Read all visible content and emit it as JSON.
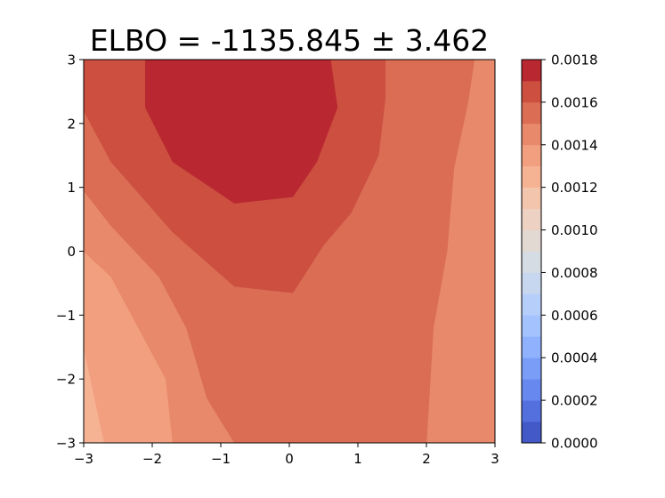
{
  "chart_data": {
    "type": "heatmap",
    "subtype": "filled-contour",
    "title": "ELBO = -1135.845 ± 3.462",
    "xlabel": "",
    "ylabel": "",
    "xlim": [
      -3,
      3
    ],
    "ylim": [
      -3,
      3
    ],
    "x_ticks": [
      -3,
      -2,
      -1,
      0,
      1,
      2,
      3
    ],
    "x_tick_labels": [
      "−3",
      "−2",
      "−1",
      "0",
      "1",
      "2",
      "3"
    ],
    "y_ticks": [
      -3,
      -2,
      -1,
      0,
      1,
      2,
      3
    ],
    "y_tick_labels": [
      "−3",
      "−2",
      "−1",
      "0",
      "1",
      "2",
      "3"
    ],
    "grid": false,
    "colormap": "coolwarm",
    "colorbar": {
      "min": 0.0,
      "max": 0.0018,
      "level_step": 0.0001,
      "ticks": [
        0.0,
        0.0002,
        0.0004,
        0.0006,
        0.0008,
        0.001,
        0.0012,
        0.0014,
        0.0016,
        0.0018
      ],
      "tick_labels": [
        "0.0000",
        "0.0002",
        "0.0004",
        "0.0006",
        "0.0008",
        "0.0010",
        "0.0012",
        "0.0014",
        "0.0016",
        "0.0018"
      ],
      "colors": [
        "#4259c7",
        "#5470de",
        "#6788ee",
        "#7a9df8",
        "#8fb1fe",
        "#a3c2fe",
        "#b6cefa",
        "#c7d7f0",
        "#d6dce4",
        "#e3d9d3",
        "#edd1c2",
        "#f4c5ad",
        "#f6b394",
        "#f29f80",
        "#e7896a",
        "#da6d54",
        "#cc4f40",
        "#b92831"
      ]
    },
    "regions": [
      {
        "level": [
          0.0012,
          0.0013
        ],
        "polygon": [
          [
            -3,
            -3
          ],
          [
            -3,
            -1.5
          ],
          [
            -2.9,
            -2
          ],
          [
            -2.7,
            -3
          ]
        ]
      },
      {
        "level": [
          0.0013,
          0.0014
        ],
        "polygon": [
          [
            -3,
            -3
          ],
          [
            -3,
            0
          ],
          [
            -2.6,
            -0.4
          ],
          [
            -2.2,
            -1.2
          ],
          [
            -1.8,
            -2
          ],
          [
            -1.7,
            -3
          ],
          [
            -2.7,
            -3
          ],
          [
            -2.9,
            -2
          ],
          [
            -3,
            -1.5
          ]
        ]
      },
      {
        "level": [
          0.0014,
          0.0015
        ],
        "polygon": [
          [
            -3,
            0.95
          ],
          [
            -3,
            0
          ],
          [
            -2.6,
            -0.4
          ],
          [
            -2.2,
            -1.2
          ],
          [
            -1.8,
            -2
          ],
          [
            -1.7,
            -3
          ],
          [
            -0.8,
            -3
          ],
          [
            -1.2,
            -2.3
          ],
          [
            -1.5,
            -1.2
          ],
          [
            -1.9,
            -0.4
          ],
          [
            -2.6,
            0.4
          ]
        ]
      },
      {
        "level": [
          0.0014,
          0.0015
        ],
        "polygon": [
          [
            3,
            3
          ],
          [
            2.7,
            3
          ],
          [
            2.6,
            2.3
          ],
          [
            2.4,
            1.3
          ],
          [
            2.3,
            0
          ],
          [
            2.1,
            -1.2
          ],
          [
            2,
            -3
          ],
          [
            3,
            -3
          ]
        ]
      },
      {
        "level": [
          0.0015,
          0.0016
        ],
        "polygon": [
          [
            -3,
            0.95
          ],
          [
            -3,
            2.2
          ],
          [
            -2.6,
            1.4
          ],
          [
            -1.7,
            0.3
          ],
          [
            -0.8,
            -0.55
          ],
          [
            0.05,
            -0.65
          ],
          [
            0.5,
            0.1
          ],
          [
            0.9,
            0.6
          ],
          [
            1.3,
            1.5
          ],
          [
            1.4,
            2.4
          ],
          [
            1.4,
            3
          ],
          [
            2.05,
            3
          ],
          [
            2,
            2.3
          ],
          [
            1.8,
            1.3
          ],
          [
            1.4,
            -0.1
          ],
          [
            1.1,
            -1.2
          ],
          [
            1.0,
            -2.2
          ],
          [
            0.6,
            -3
          ],
          [
            -0.8,
            -3
          ],
          [
            -1.2,
            -2.3
          ],
          [
            -1.5,
            -1.2
          ],
          [
            -1.9,
            -0.4
          ],
          [
            -2.6,
            0.4
          ]
        ]
      },
      {
        "level": [
          0.0015,
          0.0016
        ],
        "polygon": [
          [
            2.05,
            3
          ],
          [
            2.7,
            3
          ],
          [
            2.6,
            2.3
          ],
          [
            2.4,
            1.3
          ],
          [
            2.3,
            0
          ],
          [
            2.1,
            -1.2
          ],
          [
            2,
            -3
          ],
          [
            0.6,
            -3
          ],
          [
            1.0,
            -2.2
          ],
          [
            1.1,
            -1.2
          ],
          [
            1.4,
            -0.1
          ],
          [
            1.8,
            1.3
          ],
          [
            2,
            2.3
          ]
        ]
      },
      {
        "level": [
          0.0016,
          0.0017
        ],
        "polygon": [
          [
            -3,
            2.2
          ],
          [
            -3,
            3
          ],
          [
            -2.1,
            3
          ],
          [
            -2.1,
            2.25
          ],
          [
            -1.7,
            1.4
          ],
          [
            -0.8,
            0.75
          ],
          [
            0.05,
            0.85
          ],
          [
            0.4,
            1.4
          ],
          [
            0.7,
            2.25
          ],
          [
            0.6,
            3
          ],
          [
            1.4,
            3
          ],
          [
            1.4,
            2.4
          ],
          [
            1.3,
            1.5
          ],
          [
            0.9,
            0.6
          ],
          [
            0.5,
            0.1
          ],
          [
            0.05,
            -0.65
          ],
          [
            -0.8,
            -0.55
          ],
          [
            -1.7,
            0.3
          ],
          [
            -2.6,
            1.4
          ]
        ]
      },
      {
        "level": [
          0.0017,
          0.0018
        ],
        "polygon": [
          [
            -2.1,
            3
          ],
          [
            -2.1,
            2.25
          ],
          [
            -1.7,
            1.4
          ],
          [
            -0.8,
            0.75
          ],
          [
            0.05,
            0.85
          ],
          [
            0.4,
            1.4
          ],
          [
            0.7,
            2.25
          ],
          [
            0.6,
            3
          ]
        ]
      }
    ]
  }
}
